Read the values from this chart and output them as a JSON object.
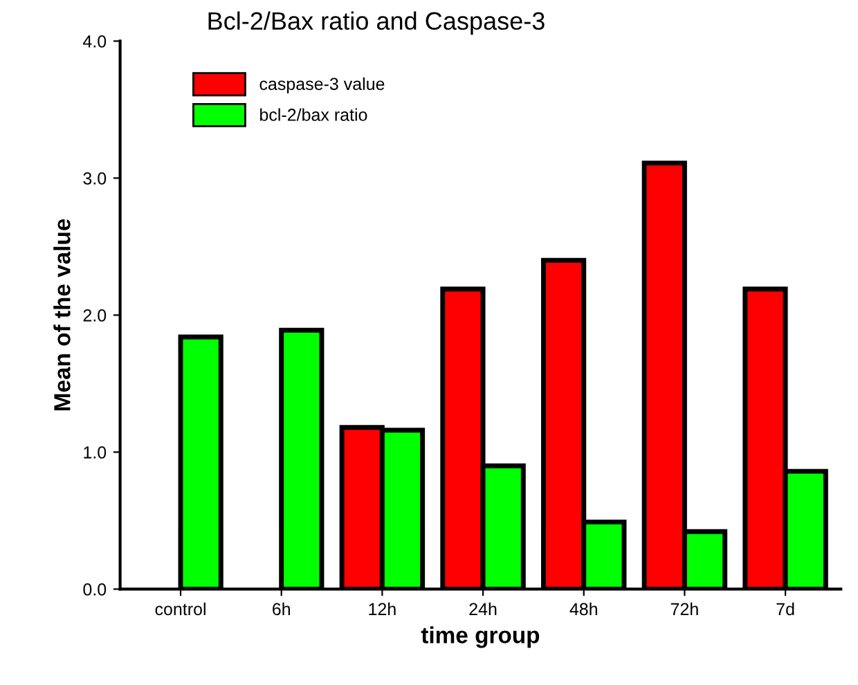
{
  "chart_data": {
    "type": "bar",
    "title": "Bcl-2/Bax ratio and Caspase-3",
    "xlabel": "time group",
    "ylabel": "Mean of the value",
    "categories": [
      "control",
      "6h",
      "12h",
      "24h",
      "48h",
      "72h",
      "7d"
    ],
    "series": [
      {
        "name": "caspase-3 value",
        "color": "#ff0000",
        "values": [
          null,
          null,
          1.18,
          2.19,
          2.4,
          3.11,
          2.19
        ]
      },
      {
        "name": "bcl-2/bax ratio",
        "color": "#00ff00",
        "values": [
          1.84,
          1.89,
          1.16,
          0.9,
          0.49,
          0.42,
          0.86
        ]
      }
    ],
    "ylim": [
      0,
      4
    ],
    "yticks": [
      {
        "value": 0,
        "label": "0.0"
      },
      {
        "value": 1,
        "label": "1.0"
      },
      {
        "value": 2,
        "label": "2.0"
      },
      {
        "value": 3,
        "label": "3.0"
      },
      {
        "value": 4,
        "label": "4.0"
      }
    ],
    "grid": false,
    "legend": "top left"
  }
}
